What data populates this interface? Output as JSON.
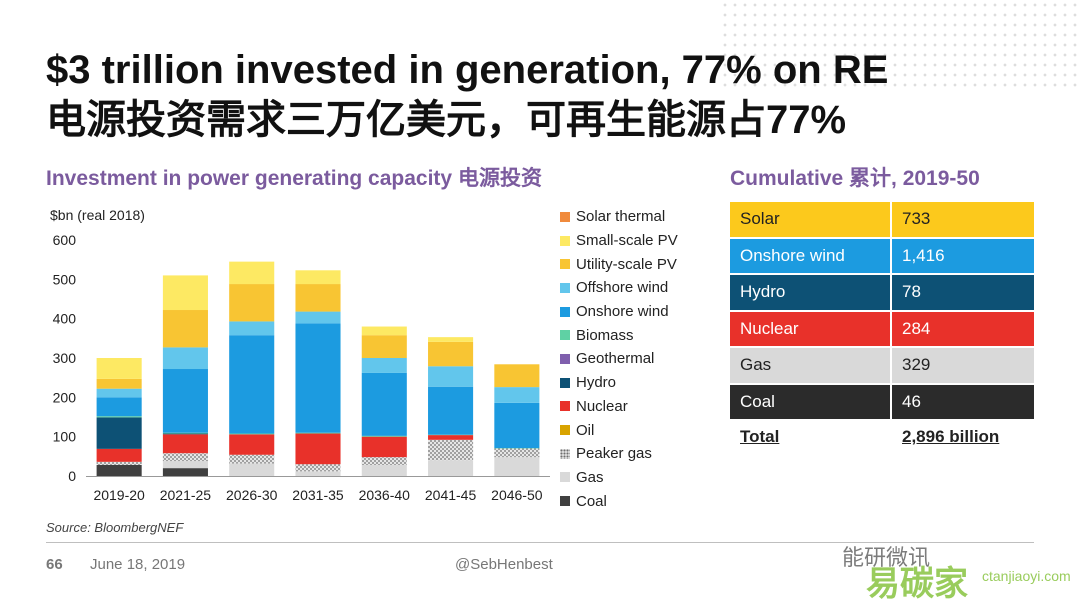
{
  "title_line1": "$3 trillion invested in generation, 77% on RE",
  "title_line2": "电源投资需求三万亿美元，可再生能源占77%",
  "subtitle_left": "Investment in power generating capacity 电源投资",
  "subtitle_right": "Cumulative 累计, 2019-50",
  "chart_data": {
    "type": "bar",
    "stacked": true,
    "ylabel": "$bn (real 2018)",
    "ylim": [
      0,
      600
    ],
    "yticks": [
      "0",
      "100",
      "200",
      "300",
      "400",
      "500",
      "600"
    ],
    "categories": [
      "2019-20",
      "2021-25",
      "2026-30",
      "2031-35",
      "2036-40",
      "2041-45",
      "2046-50"
    ],
    "series": [
      {
        "name": "Coal",
        "color": "#404040",
        "values": [
          28,
          20,
          0,
          0,
          0,
          0,
          0
        ]
      },
      {
        "name": "Gas",
        "color": "#d9d9d9",
        "values": [
          0,
          18,
          32,
          12,
          28,
          40,
          48
        ]
      },
      {
        "name": "Peaker gas",
        "color": "#b0b0b0",
        "pattern": "dots",
        "values": [
          8,
          20,
          22,
          18,
          20,
          52,
          22
        ]
      },
      {
        "name": "Oil",
        "color": "#d8a300",
        "values": [
          0,
          0,
          0,
          0,
          0,
          0,
          0
        ]
      },
      {
        "name": "Nuclear",
        "color": "#e8312a",
        "values": [
          33,
          48,
          52,
          78,
          52,
          12,
          0
        ]
      },
      {
        "name": "Hydro",
        "color": "#0d5175",
        "values": [
          80,
          2,
          0,
          0,
          0,
          0,
          0
        ]
      },
      {
        "name": "Geothermal",
        "color": "#7f5fad",
        "values": [
          0,
          0,
          0,
          0,
          0,
          0,
          0
        ]
      },
      {
        "name": "Biomass",
        "color": "#5fd1a4",
        "values": [
          3,
          2,
          2,
          2,
          2,
          1,
          1
        ]
      },
      {
        "name": "Onshore wind",
        "color": "#1c9be0",
        "values": [
          48,
          162,
          250,
          278,
          160,
          122,
          115
        ]
      },
      {
        "name": "Offshore wind",
        "color": "#62c6ec",
        "values": [
          22,
          55,
          35,
          30,
          38,
          52,
          40
        ]
      },
      {
        "name": "Utility-scale PV",
        "color": "#f8c533",
        "values": [
          25,
          95,
          95,
          70,
          58,
          62,
          58
        ]
      },
      {
        "name": "Small-scale PV",
        "color": "#fde963",
        "values": [
          53,
          88,
          57,
          35,
          22,
          12,
          0
        ]
      },
      {
        "name": "Solar thermal",
        "color": "#f08a3c",
        "values": [
          0,
          0,
          0,
          0,
          0,
          0,
          0
        ]
      }
    ]
  },
  "legend": [
    {
      "label": "Solar thermal",
      "color": "#f08a3c",
      "pattern": ""
    },
    {
      "label": "Small-scale PV",
      "color": "#fde963",
      "pattern": ""
    },
    {
      "label": "Utility-scale PV",
      "color": "#f8c533",
      "pattern": ""
    },
    {
      "label": "Offshore wind",
      "color": "#62c6ec",
      "pattern": ""
    },
    {
      "label": "Onshore wind",
      "color": "#1c9be0",
      "pattern": ""
    },
    {
      "label": "Biomass",
      "color": "#5fd1a4",
      "pattern": ""
    },
    {
      "label": "Geothermal",
      "color": "#7f5fad",
      "pattern": ""
    },
    {
      "label": "Hydro",
      "color": "#0d5175",
      "pattern": ""
    },
    {
      "label": "Nuclear",
      "color": "#e8312a",
      "pattern": ""
    },
    {
      "label": "Oil",
      "color": "#d8a300",
      "pattern": ""
    },
    {
      "label": "Peaker gas",
      "color": "#b0b0b0",
      "pattern": "dots"
    },
    {
      "label": "Gas",
      "color": "#d9d9d9",
      "pattern": ""
    },
    {
      "label": "Coal",
      "color": "#404040",
      "pattern": ""
    }
  ],
  "cumulative_table": {
    "rows": [
      {
        "label": "Solar",
        "value": "733",
        "bg": "#fcc91c",
        "fg": "#222222"
      },
      {
        "label": "Onshore wind",
        "value": "1,416",
        "bg": "#1c9be0",
        "fg": "#ffffff"
      },
      {
        "label": "Hydro",
        "value": "78",
        "bg": "#0d5175",
        "fg": "#ffffff"
      },
      {
        "label": "Nuclear",
        "value": "284",
        "bg": "#e8312a",
        "fg": "#ffffff"
      },
      {
        "label": "Gas",
        "value": "329",
        "bg": "#d9d9d9",
        "fg": "#222222"
      },
      {
        "label": "Coal",
        "value": "46",
        "bg": "#2b2b2b",
        "fg": "#ffffff"
      }
    ],
    "total_label": "Total",
    "total_value": "2,896 billion"
  },
  "source": "Source: BloombergNEF",
  "footer": {
    "page": "66",
    "date": "June 18, 2019",
    "handle": "@SebHenbest"
  },
  "watermark": {
    "line1": "能研微讯",
    "line2": "易碳家",
    "line3": "ctanjiaoyi.com"
  }
}
